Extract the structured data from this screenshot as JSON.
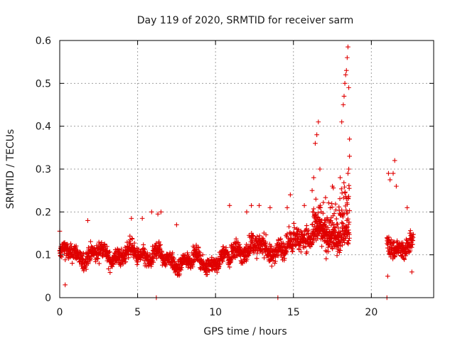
{
  "chart_data": {
    "type": "scatter",
    "title": "Day 119 of 2020, SRMTID for receiver sarm",
    "xlabel": "GPS time / hours",
    "ylabel": "SRMTID / TECUs",
    "xlim": [
      0,
      24
    ],
    "ylim": [
      0,
      0.6
    ],
    "x_ticks": [
      0,
      5,
      10,
      15,
      20
    ],
    "x_tick_labels": [
      "0",
      "5",
      "10",
      "15",
      "20"
    ],
    "y_ticks": [
      0,
      0.1,
      0.2,
      0.3,
      0.4,
      0.5,
      0.6
    ],
    "y_tick_labels": [
      "0",
      "0.1",
      "0.2",
      "0.3",
      "0.4",
      "0.5",
      "0.6"
    ],
    "grid": true,
    "marker": "plus",
    "color": "#e00000",
    "series": [
      {
        "name": "SRMTID",
        "segments": [
          {
            "x_start": 0.0,
            "x_end": 6.5,
            "baseline": 0.1,
            "spread": 0.035
          },
          {
            "x_start": 6.5,
            "x_end": 11.0,
            "baseline": 0.085,
            "spread": 0.03
          },
          {
            "x_start": 11.0,
            "x_end": 15.0,
            "baseline": 0.115,
            "spread": 0.04
          },
          {
            "x_start": 15.0,
            "x_end": 18.6,
            "baseline": 0.145,
            "spread": 0.05
          },
          {
            "x_start": 21.0,
            "x_end": 22.7,
            "baseline": 0.12,
            "spread": 0.04
          }
        ],
        "notable_points": [
          [
            0.0,
            0.155
          ],
          [
            0.35,
            0.03
          ],
          [
            1.8,
            0.18
          ],
          [
            4.6,
            0.185
          ],
          [
            5.3,
            0.185
          ],
          [
            5.9,
            0.2
          ],
          [
            6.2,
            0.0
          ],
          [
            6.3,
            0.195
          ],
          [
            6.5,
            0.2
          ],
          [
            7.5,
            0.17
          ],
          [
            10.9,
            0.215
          ],
          [
            12.0,
            0.2
          ],
          [
            12.3,
            0.215
          ],
          [
            12.8,
            0.215
          ],
          [
            13.5,
            0.21
          ],
          [
            14.0,
            0.0
          ],
          [
            14.6,
            0.21
          ],
          [
            14.8,
            0.24
          ],
          [
            15.7,
            0.215
          ],
          [
            16.2,
            0.25
          ],
          [
            16.3,
            0.28
          ],
          [
            16.4,
            0.36
          ],
          [
            16.5,
            0.38
          ],
          [
            16.6,
            0.41
          ],
          [
            16.7,
            0.3
          ],
          [
            17.5,
            0.26
          ],
          [
            18.0,
            0.28
          ],
          [
            18.1,
            0.41
          ],
          [
            18.2,
            0.45
          ],
          [
            18.25,
            0.47
          ],
          [
            18.3,
            0.5
          ],
          [
            18.35,
            0.52
          ],
          [
            18.4,
            0.53
          ],
          [
            18.45,
            0.56
          ],
          [
            18.5,
            0.585
          ],
          [
            18.55,
            0.49
          ],
          [
            18.6,
            0.37
          ],
          [
            18.6,
            0.33
          ],
          [
            18.55,
            0.3
          ],
          [
            18.5,
            0.29
          ],
          [
            21.0,
            0.0
          ],
          [
            21.05,
            0.05
          ],
          [
            21.1,
            0.29
          ],
          [
            21.2,
            0.275
          ],
          [
            21.4,
            0.29
          ],
          [
            21.5,
            0.32
          ],
          [
            21.6,
            0.26
          ],
          [
            22.3,
            0.21
          ],
          [
            22.6,
            0.06
          ]
        ]
      }
    ]
  }
}
